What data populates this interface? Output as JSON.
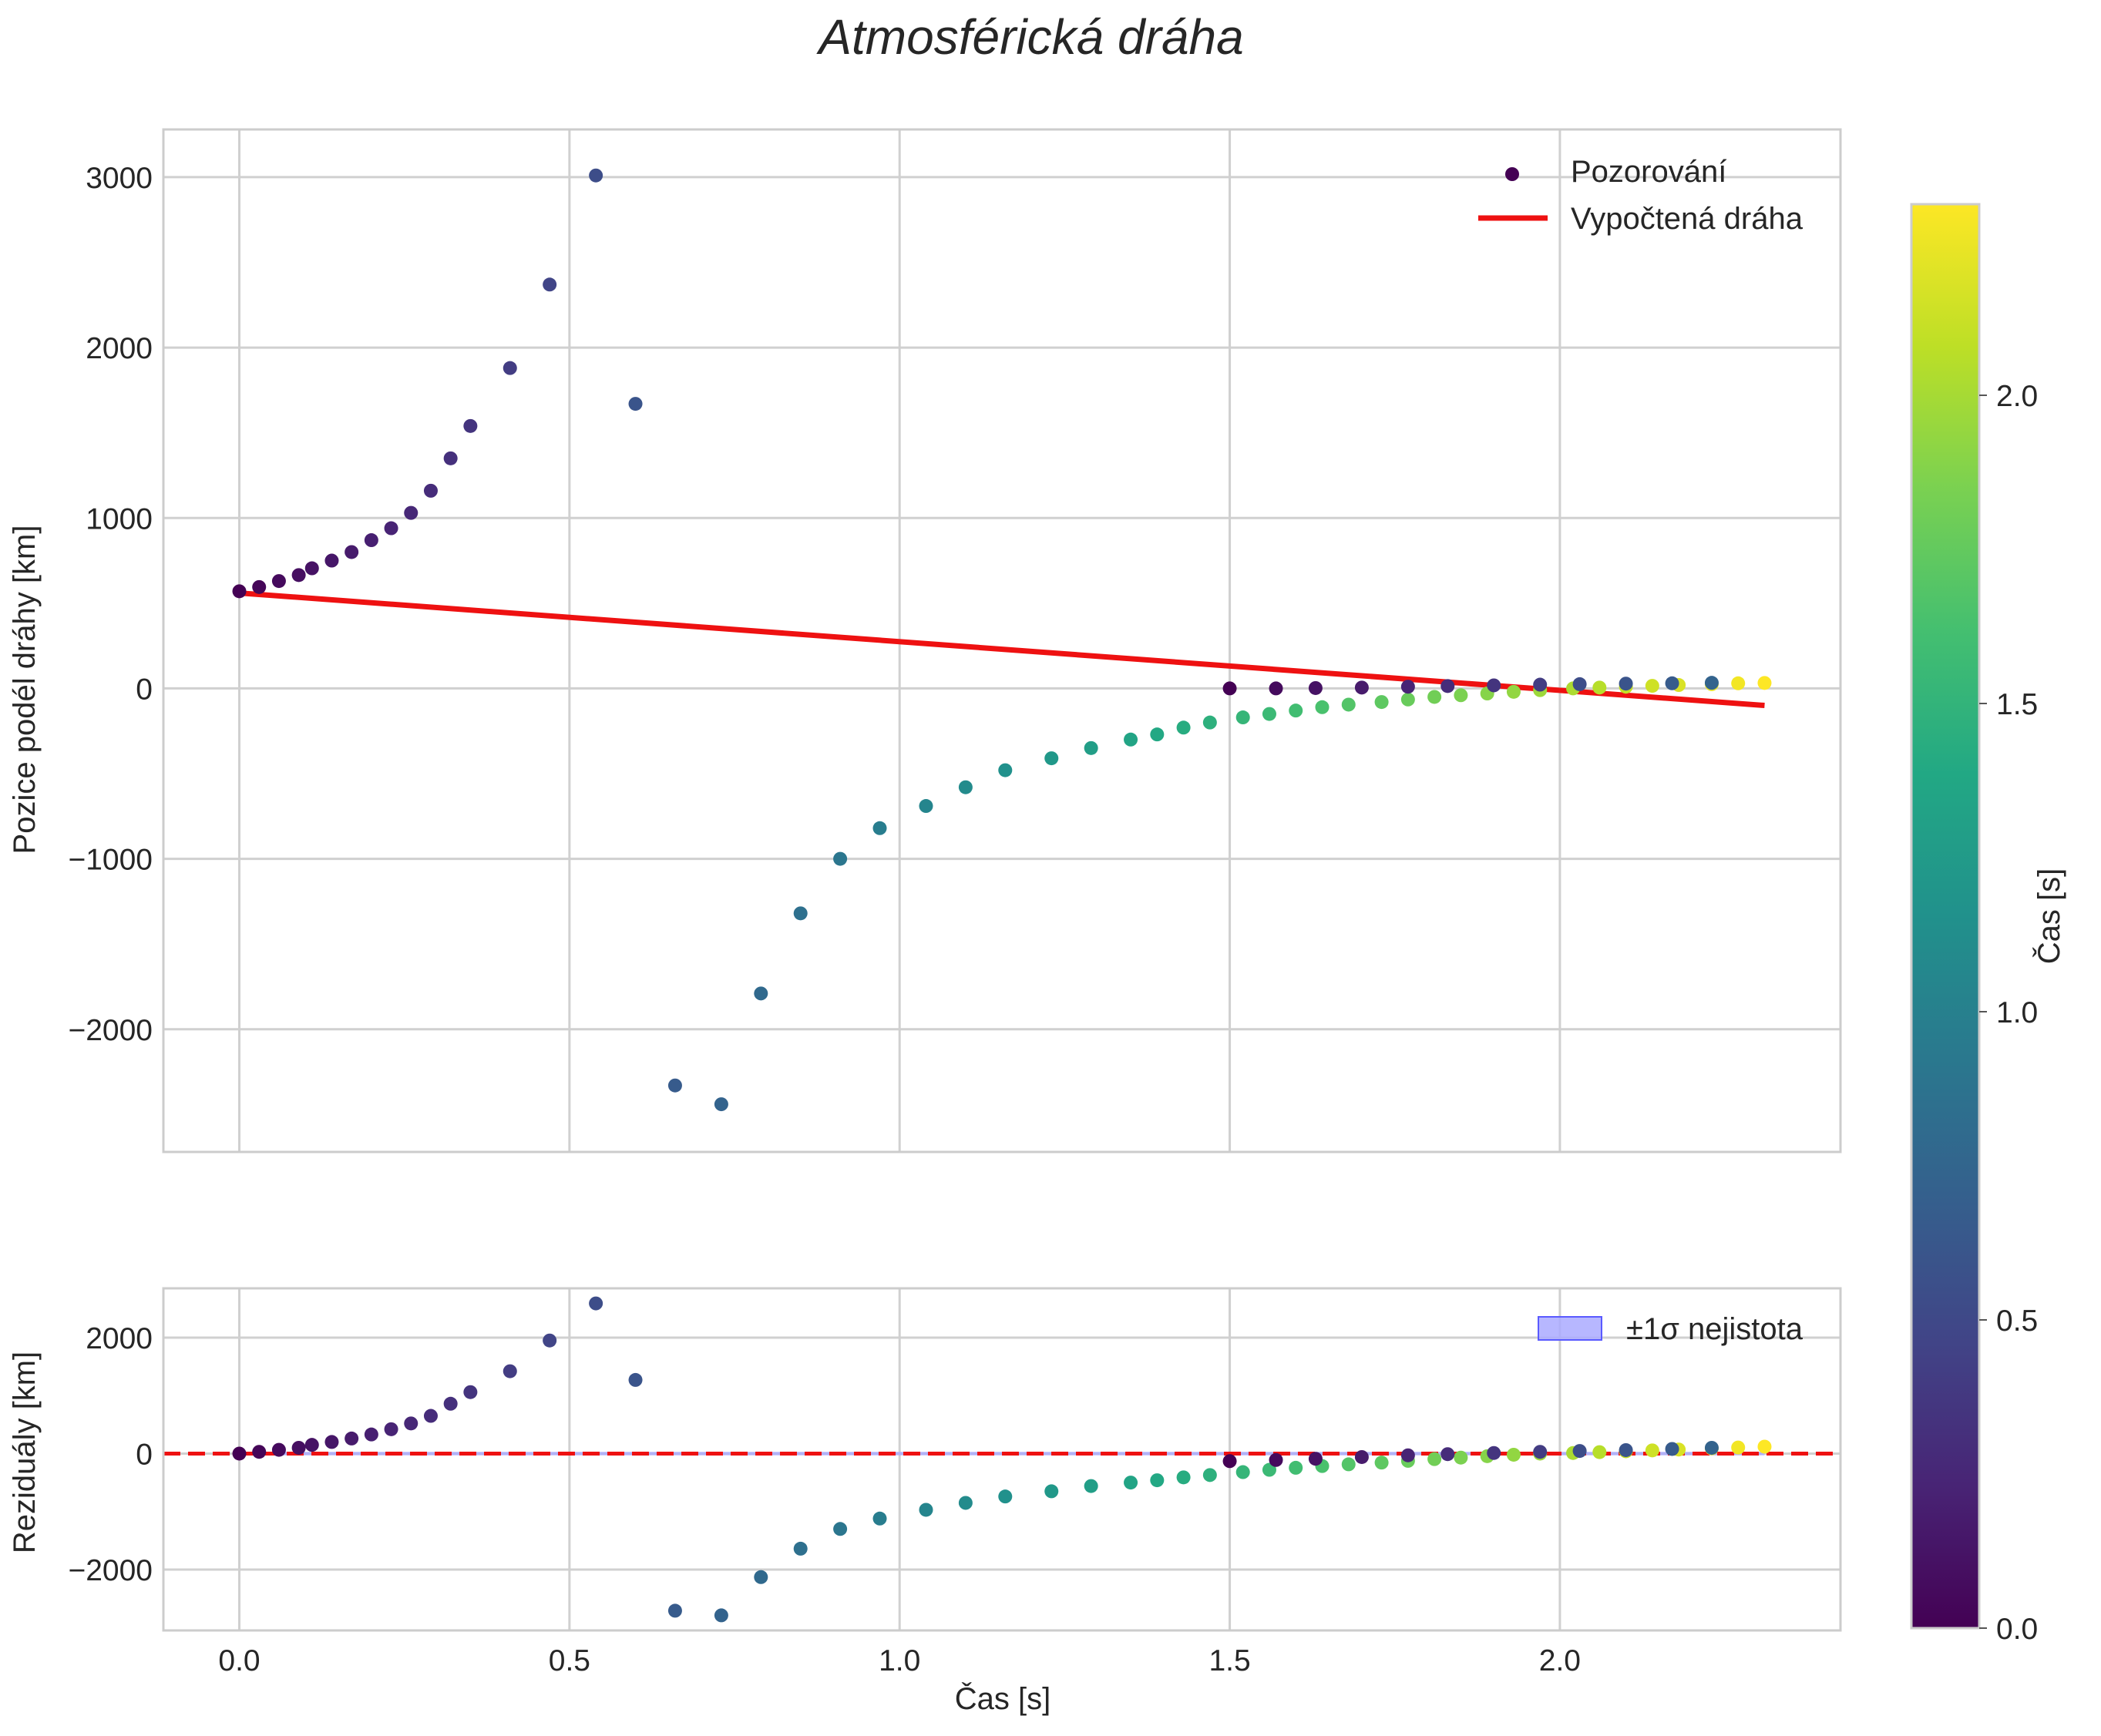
{
  "chart_data": [
    {
      "type": "scatter",
      "panel": "main",
      "title": "Atmosférická dráha",
      "xlabel": "",
      "ylabel": "Pozice podél dráhy [km]",
      "xlim": [
        -0.115,
        2.425
      ],
      "ylim": [
        -2720,
        3280
      ],
      "xticks": [
        0.0,
        0.5,
        1.0,
        1.5,
        2.0
      ],
      "xtick_labels": [
        "",
        "",
        "",
        "",
        ""
      ],
      "yticks": [
        -2000,
        -1000,
        0,
        1000,
        2000,
        3000
      ],
      "ytick_labels": [
        "−2000",
        "−1000",
        "0",
        "1000",
        "2000",
        "3000"
      ],
      "grid": true,
      "legend": {
        "position": "upper right",
        "entries": [
          {
            "label": "Pozorování",
            "kind": "marker",
            "color": "#440154"
          },
          {
            "label": "Vypočtená dráha",
            "kind": "line",
            "color": "#ee1111"
          }
        ]
      },
      "series": [
        {
          "name": "Pozorování",
          "colored_by": "Čas [s]",
          "x": [
            0.0,
            0.03,
            0.06,
            0.09,
            0.11,
            0.14,
            0.17,
            0.2,
            0.23,
            0.26,
            0.29,
            0.32,
            0.35,
            0.41,
            0.47,
            0.54,
            0.6,
            0.66,
            0.73,
            0.79,
            0.85,
            0.91,
            0.97,
            1.04,
            1.1,
            1.16,
            1.23,
            1.29,
            1.35,
            1.39,
            1.43,
            1.47,
            1.52,
            1.56,
            1.6,
            1.64,
            1.68,
            1.73,
            1.77,
            1.81,
            1.85,
            1.89,
            1.93,
            1.97,
            2.02,
            2.06,
            2.1,
            2.14,
            2.18,
            2.23,
            2.27,
            2.31,
            1.5,
            1.57,
            1.63,
            1.7,
            1.77,
            1.83,
            1.9,
            1.97,
            2.03,
            2.1,
            2.17,
            2.23
          ],
          "y": [
            570,
            595,
            630,
            665,
            705,
            750,
            800,
            870,
            940,
            1030,
            1160,
            1350,
            1540,
            1880,
            2370,
            3010,
            1670,
            -2330,
            -2440,
            -1790,
            -1320,
            -1000,
            -820,
            -690,
            -580,
            -480,
            -410,
            -350,
            -300,
            -270,
            -230,
            -200,
            -170,
            -150,
            -130,
            -110,
            -95,
            -80,
            -65,
            -50,
            -40,
            -30,
            -20,
            -10,
            0,
            5,
            10,
            15,
            20,
            25,
            30,
            32,
            0,
            0,
            2,
            5,
            10,
            14,
            18,
            22,
            25,
            28,
            30,
            33
          ],
          "t": [
            0.0,
            0.03,
            0.06,
            0.09,
            0.11,
            0.14,
            0.17,
            0.2,
            0.23,
            0.26,
            0.29,
            0.32,
            0.35,
            0.41,
            0.47,
            0.54,
            0.6,
            0.66,
            0.73,
            0.79,
            0.85,
            0.91,
            0.97,
            1.04,
            1.1,
            1.16,
            1.23,
            1.29,
            1.35,
            1.39,
            1.43,
            1.47,
            1.52,
            1.56,
            1.6,
            1.64,
            1.68,
            1.73,
            1.77,
            1.81,
            1.85,
            1.89,
            1.93,
            1.97,
            2.02,
            2.06,
            2.1,
            2.14,
            2.18,
            2.23,
            2.27,
            2.31,
            0.0,
            0.06,
            0.11,
            0.17,
            0.23,
            0.29,
            0.35,
            0.41,
            0.54,
            0.6,
            0.66,
            0.73
          ]
        },
        {
          "name": "Vypočtená dráha",
          "type": "line",
          "x": [
            0.0,
            2.31
          ],
          "y": [
            560,
            -100
          ]
        }
      ]
    },
    {
      "type": "scatter",
      "panel": "residuals",
      "xlabel": "Čas [s]",
      "ylabel": "Reziduály [km]",
      "xlim": [
        -0.115,
        2.425
      ],
      "ylim": [
        -3050,
        2850
      ],
      "xticks": [
        0.0,
        0.5,
        1.0,
        1.5,
        2.0
      ],
      "xtick_labels": [
        "0.0",
        "0.5",
        "1.0",
        "1.5",
        "2.0"
      ],
      "yticks": [
        -2000,
        0,
        2000
      ],
      "ytick_labels": [
        "−2000",
        "0",
        "2000"
      ],
      "grid": true,
      "reference_line": {
        "y": 0,
        "style": "dashed",
        "color": "#ee1111"
      },
      "band": {
        "label": "±1σ nejistota",
        "low": -30,
        "high": 30,
        "color": "#aaaaff"
      },
      "legend": {
        "position": "upper right",
        "entries": [
          {
            "label": "±1σ nejistota",
            "kind": "patch",
            "color": "#aaaaff"
          }
        ]
      },
      "series": [
        {
          "name": "Reziduály",
          "x": [
            0.0,
            0.03,
            0.06,
            0.09,
            0.11,
            0.14,
            0.17,
            0.2,
            0.23,
            0.26,
            0.29,
            0.32,
            0.35,
            0.41,
            0.47,
            0.54,
            0.6,
            0.66,
            0.73,
            0.79,
            0.85,
            0.91,
            0.97,
            1.04,
            1.1,
            1.16,
            1.23,
            1.29,
            1.35,
            1.39,
            1.43,
            1.47,
            1.52,
            1.56,
            1.6,
            1.64,
            1.68,
            1.73,
            1.77,
            1.81,
            1.85,
            1.89,
            1.93,
            1.97,
            2.02,
            2.06,
            2.1,
            2.14,
            2.18,
            2.23,
            2.27,
            2.31,
            1.5,
            1.57,
            1.63,
            1.7,
            1.77,
            1.83,
            1.9,
            1.97,
            2.03,
            2.1,
            2.17,
            2.23
          ],
          "y": [
            0,
            30,
            65,
            100,
            150,
            200,
            260,
            330,
            420,
            520,
            650,
            860,
            1060,
            1420,
            1950,
            2590,
            1270,
            -2710,
            -2790,
            -2130,
            -1640,
            -1300,
            -1120,
            -970,
            -850,
            -740,
            -650,
            -560,
            -500,
            -460,
            -410,
            -370,
            -320,
            -280,
            -245,
            -215,
            -185,
            -155,
            -125,
            -95,
            -70,
            -45,
            -20,
            0,
            10,
            25,
            40,
            55,
            70,
            90,
            105,
            120,
            -130,
            -110,
            -90,
            -60,
            -30,
            -10,
            10,
            30,
            45,
            60,
            80,
            100
          ],
          "t": [
            0.0,
            0.03,
            0.06,
            0.09,
            0.11,
            0.14,
            0.17,
            0.2,
            0.23,
            0.26,
            0.29,
            0.32,
            0.35,
            0.41,
            0.47,
            0.54,
            0.6,
            0.66,
            0.73,
            0.79,
            0.85,
            0.91,
            0.97,
            1.04,
            1.1,
            1.16,
            1.23,
            1.29,
            1.35,
            1.39,
            1.43,
            1.47,
            1.52,
            1.56,
            1.6,
            1.64,
            1.68,
            1.73,
            1.77,
            1.81,
            1.85,
            1.89,
            1.93,
            1.97,
            2.02,
            2.06,
            2.1,
            2.14,
            2.18,
            2.23,
            2.27,
            2.31,
            0.0,
            0.06,
            0.11,
            0.17,
            0.23,
            0.29,
            0.35,
            0.41,
            0.54,
            0.6,
            0.66,
            0.73
          ]
        }
      ]
    },
    {
      "type": "colorbar",
      "label": "Čas [s]",
      "colormap": "viridis",
      "range": [
        0.0,
        2.31
      ],
      "ticks": [
        0.0,
        0.5,
        1.0,
        1.5,
        2.0
      ],
      "tick_labels": [
        "0.0",
        "0.5",
        "1.0",
        "1.5",
        "2.0"
      ]
    }
  ]
}
